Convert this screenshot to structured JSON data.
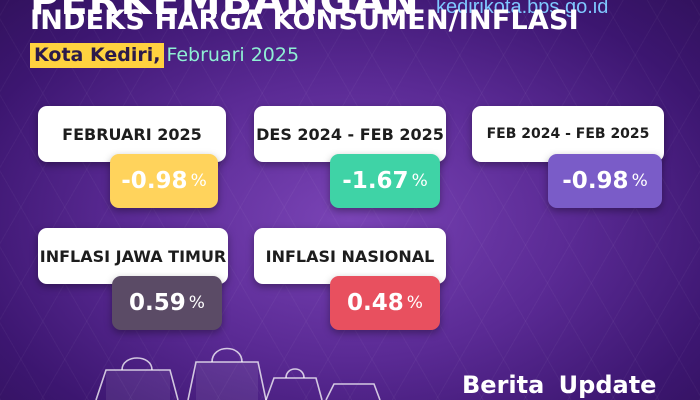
{
  "header": {
    "title_top": "PERKEMBANGAN",
    "title_main": "INDEKS HARGA KONSUMEN/INFLASI",
    "website": "kedirikota.bps.go.id",
    "city": "Kota Kediri,",
    "period": "Februari 2025"
  },
  "cards": [
    {
      "label": "FEBRUARI 2025",
      "value": "-0.98",
      "unit": "%",
      "color": "#ffd35c"
    },
    {
      "label": "DES 2024 - FEB 2025",
      "value": "-1.67",
      "unit": "%",
      "color": "#3fd3a6"
    },
    {
      "label": "FEB 2024 - FEB 2025",
      "value": "-0.98",
      "unit": "%",
      "color": "#7a5cc8"
    },
    {
      "label": "INFLASI JAWA TIMUR",
      "value": "0.59",
      "unit": "%",
      "color": "#5b4b66"
    },
    {
      "label": "INFLASI NASIONAL",
      "value": "0.48",
      "unit": "%",
      "color": "#e8505f"
    }
  ],
  "footer": {
    "text": "Berita Update"
  },
  "colors": {
    "background": "#5a2a94",
    "city_highlight": "#ffd23f",
    "period_text": "#8ff0d4",
    "website_text": "#7fc8ff"
  },
  "icons": [
    "shopping-bags-illustration"
  ]
}
